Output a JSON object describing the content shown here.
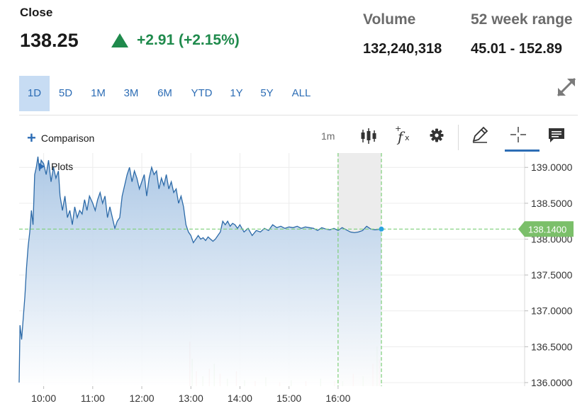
{
  "quote": {
    "label": "Close",
    "price": "138.25",
    "change": "+2.91 (+2.15%)",
    "change_color": "#1f8a4c"
  },
  "stats": {
    "volume_label": "Volume",
    "volume_value": "132,240,318",
    "range_label": "52 week range",
    "range_value": "45.01 - 152.89"
  },
  "ranges": [
    "1D",
    "5D",
    "1M",
    "3M",
    "6M",
    "YTD",
    "1Y",
    "5Y",
    "ALL"
  ],
  "active_range": "1D",
  "toolbar": {
    "comparison_label": "Comparison",
    "interval_label": "1m",
    "plots_label": "Plots",
    "icons": [
      "candlestick-icon",
      "function-icon",
      "gear-icon",
      "pencil-icon",
      "crosshair-icon",
      "comment-icon",
      "expand-icon"
    ]
  },
  "chart_data": {
    "type": "area",
    "title": "",
    "xlabel": "",
    "ylabel": "",
    "x_ticks": [
      "10:00",
      "11:00",
      "12:00",
      "13:00",
      "14:00",
      "15:00",
      "16:00"
    ],
    "y_ticks": [
      "139.0000",
      "138.5000",
      "138.0000",
      "137.5000",
      "137.0000",
      "136.5000",
      "136.0000"
    ],
    "ylim": [
      135.95,
      139.2
    ],
    "xlim": [
      "09:30",
      "16:53"
    ],
    "last_value_label": "138.1400",
    "last_value": 138.14,
    "series": [
      {
        "points": [
          [
            "09:30",
            136.0
          ],
          [
            "09:31",
            136.8
          ],
          [
            "09:33",
            136.6
          ],
          [
            "09:35",
            136.9
          ],
          [
            "09:37",
            137.2
          ],
          [
            "09:39",
            137.6
          ],
          [
            "09:41",
            137.9
          ],
          [
            "09:43",
            138.1
          ],
          [
            "09:45",
            138.4
          ],
          [
            "09:47",
            138.2
          ],
          [
            "09:49",
            138.9
          ],
          [
            "09:51",
            139.0
          ],
          [
            "09:53",
            139.15
          ],
          [
            "09:55",
            138.95
          ],
          [
            "09:57",
            139.1
          ],
          [
            "10:00",
            139.05
          ],
          [
            "10:03",
            138.9
          ],
          [
            "10:06",
            139.1
          ],
          [
            "10:09",
            138.8
          ],
          [
            "10:12",
            139.0
          ],
          [
            "10:15",
            138.85
          ],
          [
            "10:18",
            138.95
          ],
          [
            "10:20",
            138.6
          ],
          [
            "10:23",
            138.4
          ],
          [
            "10:26",
            138.6
          ],
          [
            "10:29",
            138.3
          ],
          [
            "10:32",
            138.4
          ],
          [
            "10:35",
            138.2
          ],
          [
            "10:38",
            138.45
          ],
          [
            "10:41",
            138.3
          ],
          [
            "10:44",
            138.4
          ],
          [
            "10:47",
            138.35
          ],
          [
            "10:50",
            138.55
          ],
          [
            "10:53",
            138.4
          ],
          [
            "10:56",
            138.6
          ],
          [
            "11:00",
            138.5
          ],
          [
            "11:03",
            138.4
          ],
          [
            "11:06",
            138.55
          ],
          [
            "11:09",
            138.65
          ],
          [
            "11:12",
            138.5
          ],
          [
            "11:15",
            138.6
          ],
          [
            "11:18",
            138.3
          ],
          [
            "11:21",
            138.45
          ],
          [
            "11:24",
            138.3
          ],
          [
            "11:27",
            138.15
          ],
          [
            "11:30",
            138.25
          ],
          [
            "11:33",
            138.3
          ],
          [
            "11:36",
            138.6
          ],
          [
            "11:39",
            138.75
          ],
          [
            "11:42",
            138.9
          ],
          [
            "11:45",
            139.0
          ],
          [
            "11:48",
            138.8
          ],
          [
            "11:51",
            138.95
          ],
          [
            "11:54",
            138.85
          ],
          [
            "11:57",
            138.7
          ],
          [
            "12:00",
            138.8
          ],
          [
            "12:03",
            138.9
          ],
          [
            "12:06",
            138.6
          ],
          [
            "12:09",
            138.85
          ],
          [
            "12:12",
            139.0
          ],
          [
            "12:15",
            138.9
          ],
          [
            "12:18",
            138.95
          ],
          [
            "12:21",
            138.7
          ],
          [
            "12:24",
            138.85
          ],
          [
            "12:27",
            138.75
          ],
          [
            "12:30",
            138.9
          ],
          [
            "12:33",
            138.7
          ],
          [
            "12:36",
            138.8
          ],
          [
            "12:39",
            138.65
          ],
          [
            "12:42",
            138.7
          ],
          [
            "12:45",
            138.5
          ],
          [
            "12:48",
            138.6
          ],
          [
            "12:51",
            138.45
          ],
          [
            "12:54",
            138.2
          ],
          [
            "12:57",
            138.1
          ],
          [
            "13:00",
            138.05
          ],
          [
            "13:03",
            137.95
          ],
          [
            "13:06",
            138.0
          ],
          [
            "13:09",
            138.05
          ],
          [
            "13:12",
            138.0
          ],
          [
            "13:15",
            138.02
          ],
          [
            "13:18",
            137.98
          ],
          [
            "13:21",
            138.03
          ],
          [
            "13:24",
            138.0
          ],
          [
            "13:27",
            137.97
          ],
          [
            "13:30",
            138.0
          ],
          [
            "13:33",
            138.05
          ],
          [
            "13:36",
            138.1
          ],
          [
            "13:39",
            138.25
          ],
          [
            "13:42",
            138.2
          ],
          [
            "13:45",
            138.25
          ],
          [
            "13:48",
            138.18
          ],
          [
            "13:51",
            138.22
          ],
          [
            "13:54",
            138.2
          ],
          [
            "13:57",
            138.15
          ],
          [
            "14:00",
            138.2
          ],
          [
            "14:05",
            138.1
          ],
          [
            "14:10",
            138.15
          ],
          [
            "14:15",
            138.05
          ],
          [
            "14:20",
            138.12
          ],
          [
            "14:25",
            138.1
          ],
          [
            "14:30",
            138.15
          ],
          [
            "14:35",
            138.12
          ],
          [
            "14:40",
            138.2
          ],
          [
            "14:45",
            138.16
          ],
          [
            "14:50",
            138.18
          ],
          [
            "14:55",
            138.15
          ],
          [
            "15:00",
            138.17
          ],
          [
            "15:05",
            138.16
          ],
          [
            "15:10",
            138.18
          ],
          [
            "15:15",
            138.15
          ],
          [
            "15:20",
            138.17
          ],
          [
            "15:25",
            138.16
          ],
          [
            "15:30",
            138.15
          ],
          [
            "15:35",
            138.12
          ],
          [
            "15:40",
            138.16
          ],
          [
            "15:45",
            138.14
          ],
          [
            "15:50",
            138.13
          ],
          [
            "15:55",
            138.15
          ],
          [
            "16:00",
            138.12
          ],
          [
            "16:05",
            138.16
          ],
          [
            "16:10",
            138.13
          ],
          [
            "16:15",
            138.1
          ],
          [
            "16:20",
            138.09
          ],
          [
            "16:25",
            138.1
          ],
          [
            "16:30",
            138.12
          ],
          [
            "16:35",
            138.18
          ],
          [
            "16:40",
            138.14
          ],
          [
            "16:45",
            138.13
          ],
          [
            "16:53",
            138.14
          ]
        ]
      }
    ],
    "volume_bars": [
      [
        "12:58",
        0.9
      ],
      [
        "13:01",
        0.55
      ],
      [
        "13:06",
        0.3
      ],
      [
        "13:14",
        0.2
      ],
      [
        "13:22",
        0.35
      ],
      [
        "13:28",
        0.45
      ],
      [
        "13:35",
        0.25
      ],
      [
        "13:44",
        0.15
      ],
      [
        "13:55",
        0.3
      ],
      [
        "14:05",
        0.12
      ],
      [
        "14:18",
        0.1
      ],
      [
        "14:31",
        0.18
      ],
      [
        "14:48",
        0.08
      ],
      [
        "15:02",
        0.12
      ],
      [
        "15:20",
        0.1
      ],
      [
        "15:38",
        0.15
      ],
      [
        "15:55",
        0.1
      ],
      [
        "16:05",
        0.1
      ],
      [
        "16:18",
        0.25
      ],
      [
        "16:30",
        0.2
      ],
      [
        "16:42",
        0.45
      ],
      [
        "16:47",
        0.8
      ],
      [
        "16:50",
        0.55
      ]
    ],
    "after_hours_start": "16:00",
    "grid": true,
    "line_color": "#2c6aa8",
    "fill_color": "#a8c5e4",
    "marker_line_color": "#7ecf7a",
    "last_value_color": "#7bbf6a",
    "dot_color": "#29a3e0"
  }
}
